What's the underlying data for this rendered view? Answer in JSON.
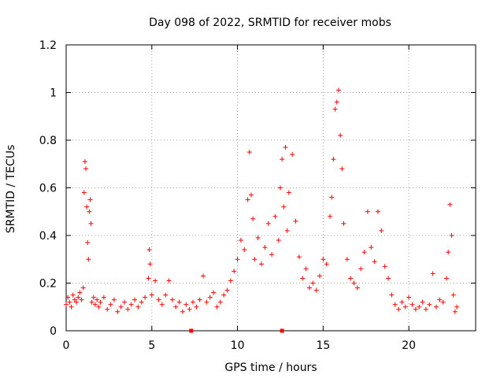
{
  "chart_data": {
    "type": "scatter",
    "title": "Day 098 of 2022, SRMTID for receiver mobs",
    "xlabel": "GPS time / hours",
    "ylabel": "SRMTID / TECUs",
    "xlim": [
      0,
      23.9
    ],
    "ylim": [
      0,
      1.2
    ],
    "x_ticks": [
      0,
      5,
      10,
      15,
      20
    ],
    "y_ticks": [
      0,
      0.2,
      0.4,
      0.6,
      0.8,
      1.0,
      1.2
    ],
    "x_tick_labels": [
      "0",
      "5",
      "10",
      "15",
      "20"
    ],
    "y_tick_labels": [
      "0",
      "0.2",
      "0.4",
      "0.6",
      "0.8",
      "1",
      "1.2"
    ],
    "grid": true,
    "marker": "+",
    "color": "#ff0000",
    "series": [
      {
        "name": "SRMTID",
        "points": [
          [
            0.0,
            0.11
          ],
          [
            0.1,
            0.14
          ],
          [
            0.2,
            0.12
          ],
          [
            0.3,
            0.1
          ],
          [
            0.4,
            0.15
          ],
          [
            0.5,
            0.13
          ],
          [
            0.6,
            0.12
          ],
          [
            0.7,
            0.14
          ],
          [
            0.8,
            0.16
          ],
          [
            0.9,
            0.13
          ],
          [
            1.0,
            0.18
          ],
          [
            1.05,
            0.58
          ],
          [
            1.1,
            0.71
          ],
          [
            1.15,
            0.68
          ],
          [
            1.2,
            0.52
          ],
          [
            1.25,
            0.37
          ],
          [
            1.3,
            0.3
          ],
          [
            1.35,
            0.5
          ],
          [
            1.4,
            0.55
          ],
          [
            1.45,
            0.45
          ],
          [
            1.5,
            0.12
          ],
          [
            1.6,
            0.14
          ],
          [
            1.7,
            0.11
          ],
          [
            1.8,
            0.13
          ],
          [
            1.9,
            0.1
          ],
          [
            2.0,
            0.12
          ],
          [
            2.2,
            0.14
          ],
          [
            2.4,
            0.09
          ],
          [
            2.6,
            0.11
          ],
          [
            2.8,
            0.13
          ],
          [
            3.0,
            0.08
          ],
          [
            3.2,
            0.1
          ],
          [
            3.4,
            0.12
          ],
          [
            3.6,
            0.09
          ],
          [
            3.8,
            0.11
          ],
          [
            4.0,
            0.13
          ],
          [
            4.2,
            0.1
          ],
          [
            4.4,
            0.12
          ],
          [
            4.6,
            0.14
          ],
          [
            4.8,
            0.22
          ],
          [
            4.85,
            0.34
          ],
          [
            4.9,
            0.28
          ],
          [
            5.0,
            0.15
          ],
          [
            5.2,
            0.21
          ],
          [
            5.4,
            0.13
          ],
          [
            5.6,
            0.11
          ],
          [
            5.8,
            0.15
          ],
          [
            6.0,
            0.21
          ],
          [
            6.2,
            0.13
          ],
          [
            6.4,
            0.1
          ],
          [
            6.6,
            0.12
          ],
          [
            6.8,
            0.08
          ],
          [
            7.0,
            0.11
          ],
          [
            7.2,
            0.09
          ],
          [
            7.4,
            0.12
          ],
          [
            7.6,
            0.1
          ],
          [
            7.8,
            0.13
          ],
          [
            8.0,
            0.23
          ],
          [
            8.2,
            0.12
          ],
          [
            8.4,
            0.14
          ],
          [
            8.6,
            0.16
          ],
          [
            8.8,
            0.1
          ],
          [
            9.0,
            0.12
          ],
          [
            9.2,
            0.15
          ],
          [
            9.4,
            0.17
          ],
          [
            9.6,
            0.21
          ],
          [
            9.8,
            0.25
          ],
          [
            10.0,
            0.3
          ],
          [
            10.2,
            0.38
          ],
          [
            10.4,
            0.34
          ],
          [
            10.6,
            0.55
          ],
          [
            10.7,
            0.75
          ],
          [
            10.8,
            0.57
          ],
          [
            10.9,
            0.47
          ],
          [
            11.0,
            0.3
          ],
          [
            11.2,
            0.39
          ],
          [
            11.4,
            0.28
          ],
          [
            11.6,
            0.35
          ],
          [
            11.8,
            0.45
          ],
          [
            12.0,
            0.32
          ],
          [
            12.2,
            0.48
          ],
          [
            12.4,
            0.38
          ],
          [
            12.5,
            0.6
          ],
          [
            12.6,
            0.72
          ],
          [
            12.7,
            0.52
          ],
          [
            12.8,
            0.77
          ],
          [
            12.9,
            0.42
          ],
          [
            13.0,
            0.58
          ],
          [
            13.2,
            0.74
          ],
          [
            13.4,
            0.46
          ],
          [
            13.6,
            0.31
          ],
          [
            13.8,
            0.22
          ],
          [
            14.0,
            0.26
          ],
          [
            14.2,
            0.18
          ],
          [
            14.4,
            0.2
          ],
          [
            14.6,
            0.17
          ],
          [
            14.8,
            0.23
          ],
          [
            15.0,
            0.3
          ],
          [
            15.2,
            0.28
          ],
          [
            15.4,
            0.48
          ],
          [
            15.5,
            0.56
          ],
          [
            15.6,
            0.72
          ],
          [
            15.7,
            0.93
          ],
          [
            15.8,
            0.96
          ],
          [
            15.9,
            1.01
          ],
          [
            16.0,
            0.82
          ],
          [
            16.1,
            0.68
          ],
          [
            16.2,
            0.45
          ],
          [
            16.4,
            0.3
          ],
          [
            16.6,
            0.22
          ],
          [
            16.8,
            0.2
          ],
          [
            17.0,
            0.18
          ],
          [
            17.2,
            0.26
          ],
          [
            17.4,
            0.33
          ],
          [
            17.6,
            0.5
          ],
          [
            17.8,
            0.35
          ],
          [
            18.0,
            0.29
          ],
          [
            18.2,
            0.5
          ],
          [
            18.4,
            0.42
          ],
          [
            18.6,
            0.27
          ],
          [
            18.8,
            0.22
          ],
          [
            19.0,
            0.15
          ],
          [
            19.2,
            0.11
          ],
          [
            19.4,
            0.09
          ],
          [
            19.6,
            0.12
          ],
          [
            19.8,
            0.1
          ],
          [
            20.0,
            0.14
          ],
          [
            20.2,
            0.11
          ],
          [
            20.4,
            0.09
          ],
          [
            20.6,
            0.1
          ],
          [
            20.8,
            0.12
          ],
          [
            21.0,
            0.09
          ],
          [
            21.2,
            0.11
          ],
          [
            21.4,
            0.24
          ],
          [
            21.6,
            0.1
          ],
          [
            21.8,
            0.13
          ],
          [
            22.0,
            0.12
          ],
          [
            22.2,
            0.22
          ],
          [
            22.3,
            0.33
          ],
          [
            22.4,
            0.53
          ],
          [
            22.5,
            0.4
          ],
          [
            22.6,
            0.15
          ],
          [
            22.7,
            0.08
          ],
          [
            22.8,
            0.1
          ]
        ]
      }
    ],
    "markers_on_axis": [
      7.3,
      12.6
    ]
  }
}
